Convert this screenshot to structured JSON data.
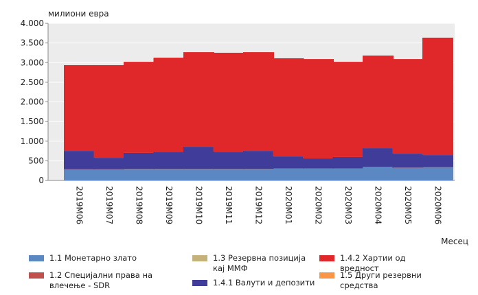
{
  "chart_data": {
    "type": "stacked_bar",
    "y_label": "милиони евра",
    "x_label": "Месец",
    "categories": [
      "2019M06",
      "2019M07",
      "2019M08",
      "2019M09",
      "2019M10",
      "2019M11",
      "2019M12",
      "2020M01",
      "2020M02",
      "2020M03",
      "2020M04",
      "2020M05",
      "2020M06"
    ],
    "series": [
      {
        "name": "1.1 Монетарно злато",
        "color": "#5b87c2",
        "values": [
          280,
          280,
          290,
          290,
          290,
          290,
          290,
          300,
          300,
          300,
          340,
          320,
          330
        ]
      },
      {
        "name": "1.2 Специјални права на влечење - SDR",
        "color": "#c0504d",
        "values": [
          5,
          5,
          5,
          5,
          5,
          5,
          5,
          5,
          5,
          5,
          5,
          5,
          5
        ]
      },
      {
        "name": "1.3 Резервна позиција кај ММФ",
        "color": "#c4b27a",
        "values": [
          0,
          0,
          0,
          0,
          0,
          0,
          0,
          0,
          0,
          0,
          0,
          0,
          0
        ]
      },
      {
        "name": "1.4.1 Валути и депозити",
        "color": "#3f3d99",
        "values": [
          465,
          290,
          405,
          435,
          560,
          435,
          455,
          305,
          255,
          290,
          475,
          355,
          310
        ]
      },
      {
        "name": "1.4.2 Хартии од вредност",
        "color": "#e0282a",
        "values": [
          2185,
          2360,
          2320,
          2395,
          2410,
          2520,
          2515,
          2500,
          2530,
          2425,
          2360,
          2410,
          2990
        ]
      },
      {
        "name": "1.5 Други резервни средства",
        "color": "#f79646",
        "values": [
          0,
          0,
          0,
          0,
          0,
          0,
          0,
          0,
          0,
          0,
          0,
          0,
          0
        ]
      }
    ],
    "ylim": [
      0,
      4000
    ],
    "yticks": [
      0,
      500,
      {
        "value": 1000,
        "label": "1.000"
      },
      {
        "value": 1500,
        "label": "1.500"
      },
      {
        "value": 2000,
        "label": "2.000"
      },
      {
        "value": 2500,
        "label": "2.500"
      },
      {
        "value": 3000,
        "label": "3.000"
      },
      {
        "value": 3500,
        "label": "3.500"
      },
      {
        "value": 4000,
        "label": "4.000"
      }
    ],
    "grid": true
  }
}
